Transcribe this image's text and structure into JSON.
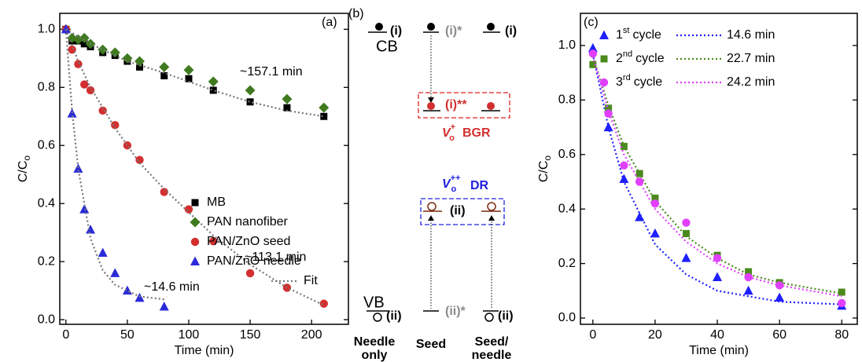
{
  "chart_data": [
    {
      "type": "scatter",
      "panel_label": "(a)",
      "xlabel": "Time (min)",
      "ylabel": "C/C",
      "ylabel_sub": "o",
      "xlim": [
        -5,
        230
      ],
      "xticks": [
        0,
        50,
        100,
        150,
        200
      ],
      "ylim": [
        -0.016,
        1.055
      ],
      "yticks": [
        {
          "value": 0,
          "label": "0.0"
        },
        {
          "value": 0.2,
          "label": "0.2"
        },
        {
          "value": 0.4,
          "label": "0.4"
        },
        {
          "value": 0.6,
          "label": "0.6"
        },
        {
          "value": 0.8,
          "label": "0.8"
        },
        {
          "value": 1,
          "label": "1.0"
        }
      ],
      "legend": "center right",
      "series": [
        {
          "name": "MB",
          "color": "#000000",
          "marker": "square",
          "x": [
            0,
            5,
            10,
            15,
            20,
            30,
            40,
            50,
            60,
            80,
            100,
            120,
            150,
            180,
            210
          ],
          "values": [
            1.0,
            0.96,
            0.96,
            0.95,
            0.94,
            0.92,
            0.91,
            0.89,
            0.87,
            0.84,
            0.83,
            0.79,
            0.75,
            0.73,
            0.7
          ]
        },
        {
          "name": "PAN nanofiber",
          "color": "#3f7a1f",
          "marker": "diamond",
          "x": [
            0,
            5,
            10,
            15,
            20,
            30,
            40,
            50,
            60,
            80,
            100,
            120,
            150,
            180,
            210
          ],
          "values": [
            1.0,
            0.97,
            0.965,
            0.97,
            0.95,
            0.93,
            0.92,
            0.9,
            0.89,
            0.87,
            0.86,
            0.82,
            0.79,
            0.76,
            0.73
          ]
        },
        {
          "name": "PAN/ZnO seed",
          "color": "#d32f2f",
          "marker": "circle",
          "x": [
            0,
            5,
            10,
            15,
            20,
            30,
            40,
            50,
            60,
            80,
            100,
            120,
            150,
            180,
            210
          ],
          "values": [
            1.0,
            0.93,
            0.88,
            0.81,
            0.79,
            0.72,
            0.67,
            0.6,
            0.55,
            0.44,
            0.38,
            0.27,
            0.16,
            0.11,
            0.055
          ]
        },
        {
          "name": "PAN/ZnO needle",
          "color": "#2b2bd9",
          "marker": "triangle",
          "x": [
            0,
            5,
            10,
            15,
            20,
            30,
            40,
            50,
            60,
            80
          ],
          "values": [
            1.0,
            0.71,
            0.52,
            0.38,
            0.31,
            0.23,
            0.16,
            0.1,
            0.075,
            0.045
          ]
        }
      ],
      "fit": {
        "name": "Fit",
        "color": "#777777",
        "curves": [
          {
            "x": [
              0,
              20,
              50,
              80,
              100,
              120,
              150,
              180,
              210
            ],
            "values": [
              1.0,
              0.95,
              0.89,
              0.85,
              0.82,
              0.79,
              0.75,
              0.72,
              0.7
            ]
          },
          {
            "x": [
              0,
              10,
              20,
              40,
              60,
              80,
              100,
              120,
              150,
              180,
              210
            ],
            "values": [
              1.0,
              0.89,
              0.8,
              0.66,
              0.54,
              0.45,
              0.37,
              0.29,
              0.19,
              0.11,
              0.05
            ]
          },
          {
            "x": [
              0,
              5,
              10,
              20,
              30,
              40,
              60,
              80
            ],
            "values": [
              1.0,
              0.72,
              0.52,
              0.28,
              0.17,
              0.12,
              0.08,
              0.07
            ]
          }
        ]
      },
      "annotations": [
        "~157.1 min",
        "~113.1 min",
        "~14.6 min"
      ]
    },
    {
      "type": "scatter",
      "panel_label": "(c)",
      "xlabel": "Time (min)",
      "ylabel": "C/C",
      "ylabel_sub": "o",
      "xlim": [
        -4,
        85
      ],
      "xticks": [
        0,
        20,
        40,
        60,
        80
      ],
      "ylim": [
        -0.023,
        1.118
      ],
      "yticks": [
        {
          "value": 0,
          "label": "0.0"
        },
        {
          "value": 0.2,
          "label": "0.2"
        },
        {
          "value": 0.4,
          "label": "0.4"
        },
        {
          "value": 0.6,
          "label": "0.6"
        },
        {
          "value": 0.8,
          "label": "0.8"
        },
        {
          "value": 1,
          "label": "1.0"
        }
      ],
      "legend": "upper right",
      "series": [
        {
          "name": "1",
          "name_sup": "st",
          "name_suffix": "cycle",
          "fit_label": "14.6 min",
          "color": "#1f1fff",
          "marker": "triangle",
          "x": [
            0,
            5,
            10,
            15,
            20,
            30,
            40,
            50,
            60,
            80
          ],
          "values": [
            0.99,
            0.7,
            0.51,
            0.37,
            0.31,
            0.22,
            0.15,
            0.1,
            0.075,
            0.045
          ],
          "fit_x": [
            0,
            5,
            10,
            20,
            30,
            40,
            50,
            60,
            80
          ],
          "fit_values": [
            0.97,
            0.7,
            0.5,
            0.27,
            0.16,
            0.1,
            0.08,
            0.06,
            0.05
          ]
        },
        {
          "name": "2",
          "name_sup": "nd",
          "name_suffix": "cycle",
          "fit_label": "22.7 min",
          "color": "#4a8a1c",
          "marker": "square",
          "x": [
            0,
            5,
            10,
            15,
            20,
            30,
            40,
            50,
            60,
            80
          ],
          "values": [
            0.93,
            0.77,
            0.63,
            0.53,
            0.44,
            0.31,
            0.23,
            0.17,
            0.13,
            0.095
          ],
          "fit_x": [
            0,
            5,
            10,
            20,
            30,
            40,
            50,
            60,
            80
          ],
          "fit_values": [
            0.96,
            0.78,
            0.63,
            0.43,
            0.3,
            0.22,
            0.16,
            0.13,
            0.09
          ]
        },
        {
          "name": "3",
          "name_sup": "rd",
          "name_suffix": "cycle",
          "fit_label": "24.2 min",
          "color": "#e040fb",
          "marker": "circle",
          "x": [
            0,
            5,
            10,
            15,
            20,
            30,
            40,
            50,
            60,
            80
          ],
          "values": [
            0.97,
            0.75,
            0.56,
            0.5,
            0.42,
            0.35,
            0.22,
            0.15,
            0.12,
            0.055
          ],
          "fit_x": [
            0,
            5,
            10,
            20,
            30,
            40,
            50,
            60,
            80
          ],
          "fit_values": [
            0.96,
            0.76,
            0.6,
            0.4,
            0.28,
            0.2,
            0.15,
            0.12,
            0.08
          ]
        }
      ]
    }
  ],
  "diagram": {
    "panel_label": "(b)",
    "cb": "CB",
    "vb": "VB",
    "columns": [
      {
        "label": [
          "Needle",
          "only"
        ],
        "top": "(i)",
        "bottom": "(ii)"
      },
      {
        "label": [
          "Seed"
        ],
        "top": "(i)*",
        "bottom": "(ii)*"
      },
      {
        "label": [
          "Seed/",
          "needle"
        ],
        "top": "(i)",
        "bottom": "(ii)"
      }
    ],
    "bgr": {
      "level": "(i)**",
      "symbol": "V",
      "sup": "+",
      "sub": "o",
      "name": "BGR"
    },
    "dr": {
      "level": "(ii)",
      "symbol": "V",
      "sup": "++",
      "sub": "o",
      "name": "DR"
    }
  }
}
